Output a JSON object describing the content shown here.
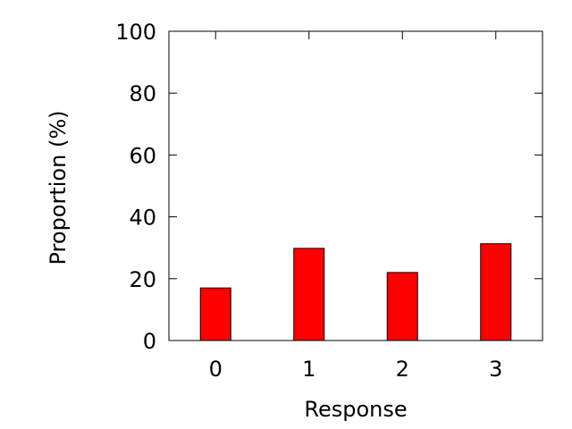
{
  "chart_data": {
    "type": "bar",
    "categories": [
      "0",
      "1",
      "2",
      "3"
    ],
    "values": [
      17,
      29.8,
      22,
      31.3
    ],
    "title": "",
    "xlabel": "Response",
    "ylabel": "Proportion (%)",
    "ylim": [
      0,
      100
    ],
    "yticks": [
      "0",
      "20",
      "40",
      "60",
      "80",
      "100"
    ],
    "grid": false,
    "legend": "none",
    "bar_color": "#ff0000",
    "bar_edge_color": "#000000"
  }
}
